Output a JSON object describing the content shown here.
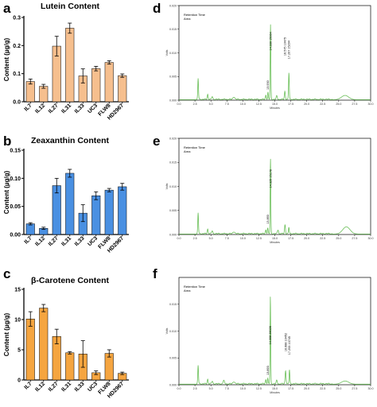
{
  "panels": [
    {
      "letter": "a"
    },
    {
      "letter": "b"
    },
    {
      "letter": "c"
    },
    {
      "letter": "d"
    },
    {
      "letter": "e"
    },
    {
      "letter": "f"
    }
  ],
  "colors": {
    "lutein_bar": "#f6bf8e",
    "zeaxanthin_bar": "#4a90e2",
    "carotene_bar": "#f5a540",
    "chromatogram_line": "#6abf58",
    "axis": "#000000"
  },
  "chart_data": [
    {
      "id": "lutein",
      "type": "bar",
      "title": "Lutein Content",
      "ylabel": "Content (µg/g)",
      "categories": [
        "IL7",
        "IL12",
        "IL27",
        "IL31",
        "IL33",
        "UC3",
        "FLW8",
        "HD2967"
      ],
      "values": [
        0.072,
        0.055,
        0.198,
        0.262,
        0.092,
        0.118,
        0.14,
        0.093
      ],
      "errors": [
        0.009,
        0.007,
        0.035,
        0.018,
        0.025,
        0.008,
        0.006,
        0.006
      ],
      "ylim": [
        0,
        0.3
      ],
      "yticks": [
        0.0,
        0.1,
        0.2,
        0.3
      ],
      "ytick_labels": [
        "0.0",
        "0.1",
        "0.2",
        "0.3"
      ]
    },
    {
      "id": "zeaxanthin",
      "type": "bar",
      "title": "Zeaxanthin Content",
      "ylabel": "Content (µg/g)",
      "categories": [
        "IL7",
        "IL12",
        "IL27",
        "IL31",
        "IL33",
        "UC3",
        "FLW8",
        "HD2967"
      ],
      "values": [
        0.019,
        0.011,
        0.087,
        0.109,
        0.038,
        0.069,
        0.079,
        0.085
      ],
      "errors": [
        0.002,
        0.002,
        0.013,
        0.007,
        0.015,
        0.007,
        0.003,
        0.006
      ],
      "ylim": [
        0,
        0.15
      ],
      "yticks": [
        0.0,
        0.05,
        0.1,
        0.15
      ],
      "ytick_labels": [
        "0.00",
        "0.05",
        "0.10",
        "0.15"
      ]
    },
    {
      "id": "carotene",
      "type": "bar",
      "title": "β-Carotene Content",
      "ylabel": "Content (µg/g)",
      "categories": [
        "IL7",
        "IL12",
        "IL27",
        "IL31",
        "IL33",
        "UC3",
        "FLW8",
        "HD2967"
      ],
      "values": [
        10.1,
        11.9,
        7.2,
        4.5,
        4.3,
        1.2,
        4.4,
        1.1
      ],
      "errors": [
        1.2,
        0.6,
        1.2,
        0.2,
        2.2,
        0.3,
        0.6,
        0.2
      ],
      "ylim": [
        0,
        15
      ],
      "yticks": [
        0,
        5,
        10,
        15
      ],
      "ytick_labels": [
        "0",
        "5",
        "10",
        "15"
      ]
    },
    {
      "id": "chrom-d",
      "type": "line",
      "xlabel": "Minutes",
      "ylabel": "Volts",
      "xlim": [
        0,
        30
      ],
      "ylim": [
        0,
        0.02
      ],
      "xticks": [
        0,
        2.5,
        5,
        7.5,
        10,
        12.5,
        15,
        17.5,
        20,
        22.5,
        25,
        27.5,
        30
      ],
      "xtick_labels": [
        "0.0",
        "2.5",
        "5.0",
        "7.5",
        "10.0",
        "12.5",
        "15.0",
        "17.5",
        "20.0",
        "22.5",
        "25.0",
        "27.5",
        "30.0"
      ],
      "yticks": [
        0.0,
        0.005,
        0.01,
        0.015,
        0.02
      ],
      "ytick_labels": [
        "0.000",
        "0.005",
        "0.010",
        "0.015",
        "0.020"
      ],
      "legend": [
        "Retention Time",
        "Area"
      ],
      "peak_labels": [
        {
          "x": 14.33,
          "y": 0.0105,
          "text": "14.330  15064"
        },
        {
          "x": 16.575,
          "y": 0.0094,
          "text": "16.575  10475"
        },
        {
          "x": 17.207,
          "y": 0.0087,
          "text": "17.207  15294"
        },
        {
          "x": 13.93,
          "y": 0.0022,
          "text": "13.930"
        }
      ],
      "peaks": [
        {
          "x": 3.0,
          "h": 0.0045,
          "w": 0.08
        },
        {
          "x": 4.5,
          "h": 0.0011,
          "w": 0.1
        },
        {
          "x": 5.2,
          "h": 0.0006,
          "w": 0.12
        },
        {
          "x": 8.6,
          "h": 0.0005,
          "w": 0.2
        },
        {
          "x": 13.6,
          "h": 0.0009,
          "w": 0.1
        },
        {
          "x": 13.93,
          "h": 0.0015,
          "w": 0.08
        },
        {
          "x": 14.33,
          "h": 0.0158,
          "w": 0.07
        },
        {
          "x": 15.3,
          "h": 0.0007,
          "w": 0.12
        },
        {
          "x": 16.575,
          "h": 0.0017,
          "w": 0.1
        },
        {
          "x": 17.207,
          "h": 0.0057,
          "w": 0.08
        },
        {
          "x": 26.0,
          "h": 0.0009,
          "w": 0.8
        }
      ]
    },
    {
      "id": "chrom-e",
      "type": "line",
      "xlabel": "Minutes",
      "ylabel": "Volts",
      "xlim": [
        0,
        30
      ],
      "ylim": [
        0,
        0.02
      ],
      "xticks": [
        0,
        2.5,
        5,
        7.5,
        10,
        12.5,
        15,
        17.5,
        20,
        22.5,
        25,
        27.5,
        30
      ],
      "xtick_labels": [
        "0.0",
        "2.5",
        "5.0",
        "7.5",
        "10.0",
        "12.5",
        "15.0",
        "17.5",
        "20.0",
        "22.5",
        "25.0",
        "27.5",
        "30.0"
      ],
      "yticks": [
        0.0,
        0.005,
        0.01,
        0.015,
        0.02
      ],
      "ytick_labels": [
        "0.000",
        "0.005",
        "0.010",
        "0.015",
        "0.020"
      ],
      "legend": [
        "Retention Time",
        "Area"
      ],
      "peak_labels": [
        {
          "x": 14.325,
          "y": 0.0097,
          "text": "14.325  15178"
        },
        {
          "x": 13.893,
          "y": 0.0022,
          "text": "13.893"
        }
      ],
      "peaks": [
        {
          "x": 3.0,
          "h": 0.0044,
          "w": 0.08
        },
        {
          "x": 4.5,
          "h": 0.001,
          "w": 0.1
        },
        {
          "x": 5.2,
          "h": 0.0006,
          "w": 0.12
        },
        {
          "x": 8.6,
          "h": 0.0004,
          "w": 0.2
        },
        {
          "x": 13.6,
          "h": 0.0008,
          "w": 0.1
        },
        {
          "x": 13.893,
          "h": 0.0012,
          "w": 0.08
        },
        {
          "x": 14.325,
          "h": 0.0157,
          "w": 0.07
        },
        {
          "x": 15.5,
          "h": 0.0008,
          "w": 0.12
        },
        {
          "x": 16.6,
          "h": 0.0019,
          "w": 0.1
        },
        {
          "x": 17.2,
          "h": 0.0014,
          "w": 0.08
        },
        {
          "x": 26.2,
          "h": 0.0015,
          "w": 0.8
        }
      ]
    },
    {
      "id": "chrom-f",
      "type": "line",
      "xlabel": "Minutes",
      "ylabel": "Volts",
      "xlim": [
        0,
        30
      ],
      "ylim": [
        0,
        0.02
      ],
      "xticks": [
        0,
        2.5,
        5,
        7.5,
        10,
        12.5,
        15,
        17.5,
        20,
        22.5,
        25,
        27.5,
        30
      ],
      "xtick_labels": [
        "0.0",
        "2.5",
        "5.0",
        "7.5",
        "10.0",
        "12.5",
        "15.0",
        "17.5",
        "20.0",
        "22.5",
        "25.0",
        "27.5",
        "30.0"
      ],
      "yticks": [
        0.0,
        0.005,
        0.01,
        0.015
      ],
      "ytick_labels": [
        "0.000",
        "0.005",
        "0.010",
        "0.015"
      ],
      "legend": [
        "Retention Time",
        "Area"
      ],
      "peak_labels": [
        {
          "x": 14.308,
          "y": 0.0075,
          "text": "14.308  26026"
        },
        {
          "x": 16.688,
          "y": 0.0062,
          "text": "16.688  10452"
        },
        {
          "x": 17.293,
          "y": 0.0056,
          "text": "17.293  10745"
        },
        {
          "x": 13.893,
          "y": 0.0018,
          "text": "13.893"
        }
      ],
      "peaks": [
        {
          "x": 3.0,
          "h": 0.0035,
          "w": 0.08
        },
        {
          "x": 4.5,
          "h": 0.0009,
          "w": 0.1
        },
        {
          "x": 5.2,
          "h": 0.0005,
          "w": 0.12
        },
        {
          "x": 7.0,
          "h": 0.0006,
          "w": 0.15
        },
        {
          "x": 8.6,
          "h": 0.0004,
          "w": 0.2
        },
        {
          "x": 13.6,
          "h": 0.0008,
          "w": 0.1
        },
        {
          "x": 13.893,
          "h": 0.001,
          "w": 0.08
        },
        {
          "x": 14.308,
          "h": 0.0164,
          "w": 0.07
        },
        {
          "x": 15.3,
          "h": 0.0006,
          "w": 0.12
        },
        {
          "x": 16.688,
          "h": 0.0025,
          "w": 0.1
        },
        {
          "x": 17.293,
          "h": 0.0026,
          "w": 0.08
        },
        {
          "x": 26.0,
          "h": 0.0006,
          "w": 0.8
        }
      ]
    }
  ]
}
